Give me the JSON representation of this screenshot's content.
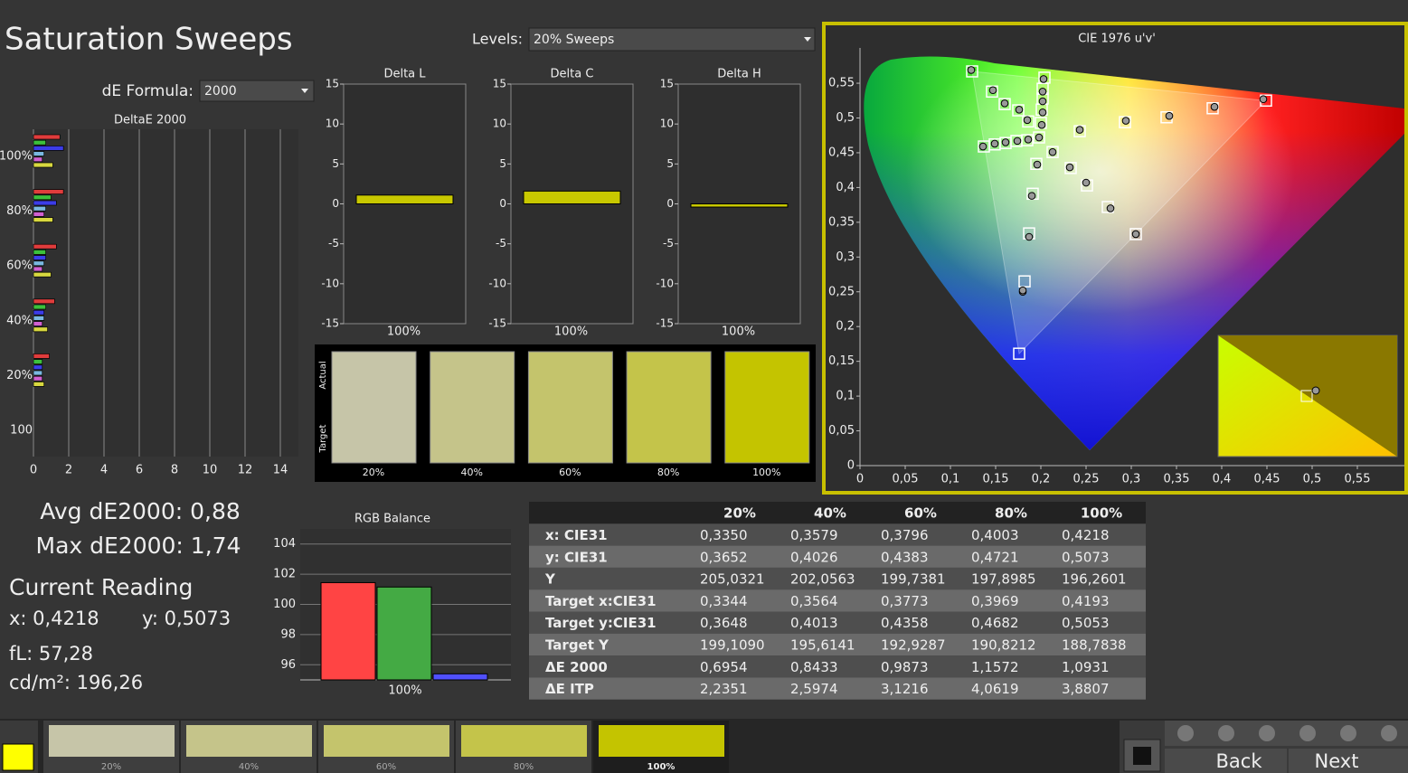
{
  "title": "Saturation Sweeps",
  "levels": {
    "label": "Levels:",
    "value": "20% Sweeps"
  },
  "de_formula": {
    "label": "dE Formula:",
    "value": "2000"
  },
  "deltae_chart": {
    "type": "bar",
    "title": "DeltaE 2000",
    "categories": [
      "100%",
      "80%",
      "60%",
      "40%",
      "20%",
      "100"
    ],
    "series": [
      {
        "color": "#e03c3c",
        "values": [
          1.5,
          1.7,
          1.3,
          1.2,
          0.9,
          null
        ]
      },
      {
        "color": "#3cc03c",
        "values": [
          0.7,
          1.0,
          0.7,
          0.7,
          0.5,
          null
        ]
      },
      {
        "color": "#3c3ce8",
        "values": [
          1.7,
          1.3,
          0.7,
          0.6,
          0.5,
          null
        ]
      },
      {
        "color": "#7ab8e0",
        "values": [
          0.6,
          0.7,
          0.6,
          0.6,
          0.5,
          null
        ]
      },
      {
        "color": "#d060d0",
        "values": [
          0.5,
          0.6,
          0.5,
          0.5,
          0.5,
          null
        ]
      },
      {
        "color": "#d8d840",
        "values": [
          1.1,
          1.1,
          1.0,
          0.8,
          0.6,
          null
        ]
      }
    ],
    "xlim": [
      0,
      15
    ],
    "xticks": [
      0,
      2,
      4,
      6,
      8,
      10,
      12,
      14
    ]
  },
  "delta_charts": [
    {
      "type": "bar",
      "title": "Delta L",
      "categories": [
        "100%"
      ],
      "values": [
        1.1
      ],
      "color": "#c8c800",
      "ylim": [
        -15,
        15
      ],
      "yticks": [
        -15,
        -10,
        -5,
        0,
        5,
        10,
        15
      ]
    },
    {
      "type": "bar",
      "title": "Delta C",
      "categories": [
        "100%"
      ],
      "values": [
        1.6
      ],
      "color": "#c8c800",
      "ylim": [
        -15,
        15
      ],
      "yticks": [
        -15,
        -10,
        -5,
        0,
        5,
        10,
        15
      ]
    },
    {
      "type": "bar",
      "title": "Delta H",
      "categories": [
        "100%"
      ],
      "values": [
        -0.4
      ],
      "color": "#c8c800",
      "ylim": [
        -15,
        15
      ],
      "yticks": [
        -15,
        -10,
        -5,
        0,
        5,
        10,
        15
      ]
    }
  ],
  "swatches": {
    "row_labels": [
      "Actual",
      "Target"
    ],
    "categories": [
      "20%",
      "40%",
      "60%",
      "80%",
      "100%"
    ],
    "colors": [
      "#c6c5a8",
      "#c5c48a",
      "#c4c46c",
      "#c4c44a",
      "#c4c400"
    ]
  },
  "cie_chart": {
    "type": "scatter",
    "title": "CIE 1976 u'v'",
    "xlim": [
      0,
      0.6
    ],
    "ylim": [
      0,
      0.6
    ],
    "xticks": [
      0,
      {
        "value": 0.05,
        "label": "0,05"
      },
      {
        "value": 0.1,
        "label": "0,1"
      },
      {
        "value": 0.15,
        "label": "0,15"
      },
      {
        "value": 0.2,
        "label": "0,2"
      },
      {
        "value": 0.25,
        "label": "0,25"
      },
      {
        "value": 0.3,
        "label": "0,3"
      },
      {
        "value": 0.35,
        "label": "0,35"
      },
      {
        "value": 0.4,
        "label": "0,4"
      },
      {
        "value": 0.45,
        "label": "0,45"
      },
      {
        "value": 0.5,
        "label": "0,5"
      },
      {
        "value": 0.55,
        "label": "0,55"
      }
    ],
    "yticks": [
      0,
      {
        "value": 0.05,
        "label": "0,05"
      },
      {
        "value": 0.1,
        "label": "0,1"
      },
      {
        "value": 0.15,
        "label": "0,15"
      },
      {
        "value": 0.2,
        "label": "0,2"
      },
      {
        "value": 0.25,
        "label": "0,25"
      },
      {
        "value": 0.3,
        "label": "0,3"
      },
      {
        "value": 0.35,
        "label": "0,35"
      },
      {
        "value": 0.4,
        "label": "0,4"
      },
      {
        "value": 0.45,
        "label": "0,45"
      },
      {
        "value": 0.5,
        "label": "0,5"
      },
      {
        "value": 0.55,
        "label": "0,55"
      }
    ],
    "targets": {
      "u": [
        0.243,
        0.293,
        0.339,
        0.39,
        0.449,
        0.186,
        0.175,
        0.16,
        0.146,
        0.124,
        0.195,
        0.191,
        0.187,
        0.182,
        0.176,
        0.185,
        0.173,
        0.161,
        0.149,
        0.137,
        0.213,
        0.233,
        0.251,
        0.274,
        0.305,
        0.2,
        0.201,
        0.202,
        0.202,
        0.204,
        0.198
      ],
      "v": [
        0.481,
        0.494,
        0.501,
        0.514,
        0.525,
        0.495,
        0.511,
        0.52,
        0.538,
        0.567,
        0.434,
        0.391,
        0.334,
        0.265,
        0.161,
        0.468,
        0.467,
        0.464,
        0.462,
        0.459,
        0.451,
        0.428,
        0.403,
        0.372,
        0.333,
        0.493,
        0.512,
        0.528,
        0.542,
        0.558,
        0.472
      ]
    },
    "measured": {
      "u": [
        0.243,
        0.294,
        0.342,
        0.392,
        0.446,
        0.185,
        0.176,
        0.16,
        0.147,
        0.123,
        0.196,
        0.19,
        0.187,
        0.18,
        0.18,
        0.186,
        0.174,
        0.161,
        0.149,
        0.136,
        0.213,
        0.232,
        0.25,
        0.277,
        0.305,
        0.201,
        0.202,
        0.202,
        0.202,
        0.203,
        0.198
      ],
      "v": [
        0.483,
        0.496,
        0.503,
        0.516,
        0.527,
        0.497,
        0.512,
        0.521,
        0.54,
        0.569,
        0.433,
        0.388,
        0.329,
        0.25,
        0.252,
        0.469,
        0.467,
        0.465,
        0.463,
        0.459,
        0.451,
        0.429,
        0.407,
        0.37,
        0.333,
        0.49,
        0.508,
        0.524,
        0.538,
        0.556,
        0.472
      ]
    }
  },
  "stats": {
    "avg": "Avg dE2000: 0,88",
    "max": "Max dE2000: 1,74"
  },
  "current_reading": {
    "title": "Current Reading",
    "x": "x: 0,4218",
    "y": "y: 0,5073",
    "fl": "fL: 57,28",
    "cdm2": "cd/m²: 196,26"
  },
  "rgb_balance": {
    "type": "bar",
    "title": "RGB Balance",
    "categories": [
      "100%"
    ],
    "series": [
      {
        "color": "#ff4444",
        "values": [
          101.44
        ]
      },
      {
        "color": "#44aa44",
        "values": [
          101.15
        ]
      },
      {
        "color": "#5050ff",
        "values": [
          95.4
        ]
      }
    ],
    "ylim": [
      95,
      105
    ],
    "yticks": [
      96,
      98,
      100,
      102,
      104
    ]
  },
  "table": {
    "header": [
      "20%",
      "40%",
      "60%",
      "80%",
      "100%"
    ],
    "rows": [
      [
        "x: CIE31",
        "0,3350",
        "0,3579",
        "0,3796",
        "0,4003",
        "0,4218"
      ],
      [
        "y: CIE31",
        "0,3652",
        "0,4026",
        "0,4383",
        "0,4721",
        "0,5073"
      ],
      [
        "Y",
        "205,0321",
        "202,0563",
        "199,7381",
        "197,8985",
        "196,2601"
      ],
      [
        "Target x:CIE31",
        "0,3344",
        "0,3564",
        "0,3773",
        "0,3969",
        "0,4193"
      ],
      [
        "Target y:CIE31",
        "0,3648",
        "0,4013",
        "0,4358",
        "0,4682",
        "0,5053"
      ],
      [
        "Target Y",
        "199,1090",
        "195,6141",
        "192,9287",
        "190,8212",
        "188,7838"
      ],
      [
        "ΔE 2000",
        "0,6954",
        "0,8433",
        "0,9873",
        "1,1572",
        "1,0931"
      ],
      [
        "ΔE ITP",
        "2,2351",
        "2,5974",
        "3,1216",
        "4,0619",
        "3,8807"
      ]
    ]
  },
  "footer": {
    "swatches": [
      {
        "label": "20%",
        "color": "#c6c5a8"
      },
      {
        "label": "40%",
        "color": "#c5c48a"
      },
      {
        "label": "60%",
        "color": "#c4c46c"
      },
      {
        "label": "80%",
        "color": "#c4c44a"
      },
      {
        "label": "100%",
        "color": "#c4c400"
      }
    ],
    "buttons": [
      "Back",
      "Next"
    ]
  }
}
